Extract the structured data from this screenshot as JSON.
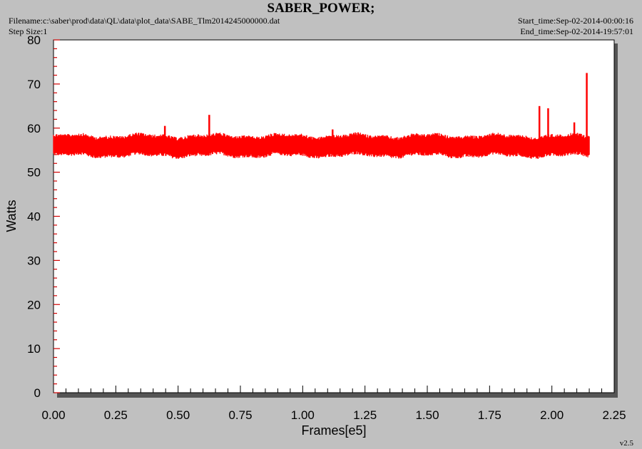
{
  "header": {
    "title": "SABER_POWER;",
    "filename": "Filename:c:\\saber\\prod\\data\\QL\\data\\plot_data\\SABE_Tlm2014245000000.dat",
    "step_size": "Step Size:1",
    "start_time": "Start_time:Sep-02-2014-00:00:16",
    "end_time": "End_time:Sep-02-2014-19:57:01"
  },
  "version": "v2.5",
  "chart_data": {
    "type": "line",
    "title": "SABER_POWER;",
    "xlabel": "Frames[e5]",
    "ylabel": "Watts",
    "xlim": [
      0.0,
      2.25
    ],
    "ylim": [
      0,
      80
    ],
    "x_ticks": [
      "0.00",
      "0.25",
      "0.50",
      "0.75",
      "1.00",
      "1.25",
      "1.50",
      "1.75",
      "2.00",
      "2.25"
    ],
    "y_ticks": [
      "0",
      "10",
      "20",
      "30",
      "40",
      "50",
      "60",
      "70",
      "80"
    ],
    "series_color": "#ff0000",
    "series": [
      {
        "x_range": [
          0.0,
          2.15
        ],
        "baseline": 56,
        "band_low": 53.5,
        "band_high": 58.5,
        "spikes": [
          {
            "x": 0.447,
            "y": 60.5
          },
          {
            "x": 0.625,
            "y": 63.0
          },
          {
            "x": 1.12,
            "y": 59.7
          },
          {
            "x": 1.95,
            "y": 65.0
          },
          {
            "x": 1.985,
            "y": 64.5
          },
          {
            "x": 2.09,
            "y": 61.3
          },
          {
            "x": 2.14,
            "y": 72.5
          }
        ]
      }
    ]
  }
}
